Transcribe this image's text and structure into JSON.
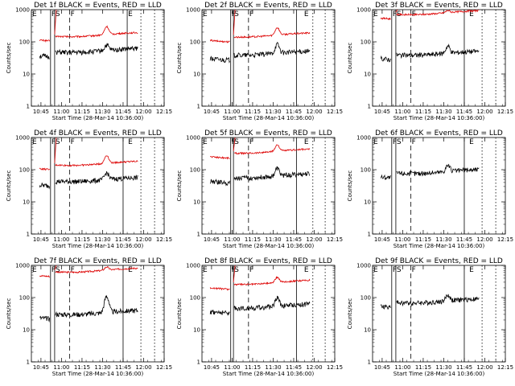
{
  "chart_data": {
    "type": "line",
    "scale": "log-y",
    "grid": false,
    "ylim": [
      1,
      1000
    ],
    "ytick_labels": [
      "1",
      "10",
      "100",
      "1000"
    ],
    "ylabel": "Counts/sec",
    "xlim": [
      "10:38",
      "12:15"
    ],
    "xtick_labels": [
      "10:45",
      "11:00",
      "11:15",
      "11:30",
      "11:45",
      "12:00",
      "12:15"
    ],
    "xlabel": "Start Time (28-Mar-14 10:36:00)",
    "series_colors": {
      "events": "#000000",
      "lld": "#dd0000"
    },
    "panels": [
      {
        "title": "Det 1f BLACK = Events, RED = LLD",
        "red_base": 170,
        "black_base": 55,
        "red_peak": 300,
        "black_peak": 80,
        "markers": [
          {
            "label": "E",
            "t": "10:38"
          },
          {
            "label": "F",
            "t": "10:52"
          },
          {
            "label": "S",
            "t": "10:55"
          },
          {
            "label": "F",
            "t": "11:06"
          },
          {
            "label": "E",
            "t": "11:48"
          }
        ],
        "solid_lines": [
          "10:52",
          "10:55",
          "11:48"
        ],
        "dashed_lines": [
          "11:06"
        ],
        "dotted_lines": [
          "11:58",
          "12:08"
        ]
      },
      {
        "title": "Det 2f BLACK = Events, RED = LLD",
        "red_base": 165,
        "black_base": 45,
        "red_peak": 280,
        "black_peak": 85,
        "markers": [
          {
            "label": "E",
            "t": "10:38"
          },
          {
            "label": "F",
            "t": "10:59"
          },
          {
            "label": "S",
            "t": "11:01"
          },
          {
            "label": "F",
            "t": "11:12"
          },
          {
            "label": "E",
            "t": "11:52"
          }
        ],
        "solid_lines": [
          "10:59",
          "11:01",
          "11:47"
        ],
        "dashed_lines": [
          "11:12"
        ],
        "dotted_lines": [
          "11:59",
          "12:08"
        ]
      },
      {
        "title": "Det 3f BLACK = Events, RED = LLD",
        "red_base": 820,
        "black_base": 45,
        "red_peak": 950,
        "black_peak": 75,
        "markers": [
          {
            "label": "E",
            "t": "10:38"
          },
          {
            "label": "F",
            "t": "10:52"
          },
          {
            "label": "S",
            "t": "10:55"
          },
          {
            "label": "F",
            "t": "11:06"
          },
          {
            "label": "E",
            "t": "11:48"
          }
        ],
        "solid_lines": [
          "10:52",
          "10:55",
          "11:45"
        ],
        "dashed_lines": [
          "11:06"
        ],
        "dotted_lines": [
          "11:58",
          "12:08"
        ]
      },
      {
        "title": "Det 4f BLACK = Events, RED = LLD",
        "red_base": 160,
        "black_base": 50,
        "red_peak": 280,
        "black_peak": 80,
        "markers": [
          {
            "label": "E",
            "t": "10:38"
          },
          {
            "label": "F",
            "t": "10:52"
          },
          {
            "label": "S",
            "t": "10:55"
          },
          {
            "label": "F",
            "t": "11:06"
          },
          {
            "label": "E",
            "t": "11:48"
          }
        ],
        "solid_lines": [
          "10:52",
          "10:55",
          "11:45"
        ],
        "dashed_lines": [
          "11:06"
        ],
        "dotted_lines": [
          "11:58",
          "12:08"
        ]
      },
      {
        "title": "Det 5f BLACK = Events, RED = LLD",
        "red_base": 380,
        "black_base": 65,
        "red_peak": 600,
        "black_peak": 110,
        "markers": [
          {
            "label": "E",
            "t": "10:38"
          },
          {
            "label": "F",
            "t": "10:59"
          },
          {
            "label": "S",
            "t": "11:01"
          },
          {
            "label": "F",
            "t": "11:12"
          },
          {
            "label": "E",
            "t": "11:52"
          }
        ],
        "solid_lines": [
          "10:59",
          "11:01",
          "11:47"
        ],
        "dashed_lines": [
          "11:12"
        ],
        "dotted_lines": [
          "11:59",
          "12:08"
        ]
      },
      {
        "title": "Det 6f BLACK = Events, RED = LLD",
        "red_base": 0,
        "black_base": 90,
        "red_peak": 0,
        "black_peak": 140,
        "markers": [
          {
            "label": "E",
            "t": "10:38"
          },
          {
            "label": "F",
            "t": "10:52"
          },
          {
            "label": "S",
            "t": "10:55"
          },
          {
            "label": "F",
            "t": "11:06"
          },
          {
            "label": "E",
            "t": "11:48"
          }
        ],
        "solid_lines": [
          "10:52",
          "10:55",
          "11:45"
        ],
        "dashed_lines": [
          "11:06"
        ],
        "dotted_lines": [
          "11:58",
          "12:08"
        ]
      },
      {
        "title": "Det 7f BLACK = Events, RED = LLD",
        "red_base": 720,
        "black_base": 35,
        "red_peak": 900,
        "black_peak": 110,
        "markers": [
          {
            "label": "E",
            "t": "10:38"
          },
          {
            "label": "F",
            "t": "10:52"
          },
          {
            "label": "S",
            "t": "10:55"
          },
          {
            "label": "F",
            "t": "11:06"
          },
          {
            "label": "E",
            "t": "11:48"
          }
        ],
        "solid_lines": [
          "10:52",
          "10:55",
          "11:45"
        ],
        "dashed_lines": [
          "11:06"
        ],
        "dotted_lines": [
          "11:58",
          "12:08"
        ]
      },
      {
        "title": "Det 8f BLACK = Events, RED = LLD",
        "red_base": 300,
        "black_base": 55,
        "red_peak": 430,
        "black_peak": 100,
        "markers": [
          {
            "label": "E",
            "t": "10:38"
          },
          {
            "label": "F",
            "t": "10:59"
          },
          {
            "label": "S",
            "t": "11:01"
          },
          {
            "label": "F",
            "t": "11:12"
          },
          {
            "label": "E",
            "t": "11:52"
          }
        ],
        "solid_lines": [
          "10:59",
          "11:01",
          "11:47"
        ],
        "dashed_lines": [
          "11:12"
        ],
        "dotted_lines": [
          "11:59",
          "12:08"
        ]
      },
      {
        "title": "Det 9f BLACK = Events, RED = LLD",
        "red_base": 0,
        "black_base": 80,
        "red_peak": 0,
        "black_peak": 120,
        "markers": [
          {
            "label": "E",
            "t": "10:38"
          },
          {
            "label": "F",
            "t": "10:52"
          },
          {
            "label": "S",
            "t": "10:55"
          },
          {
            "label": "F",
            "t": "11:06"
          },
          {
            "label": "E",
            "t": "11:48"
          }
        ],
        "solid_lines": [
          "10:52",
          "10:55",
          "11:45"
        ],
        "dashed_lines": [
          "11:06"
        ],
        "dotted_lines": [
          "11:58",
          "12:08"
        ]
      }
    ]
  }
}
